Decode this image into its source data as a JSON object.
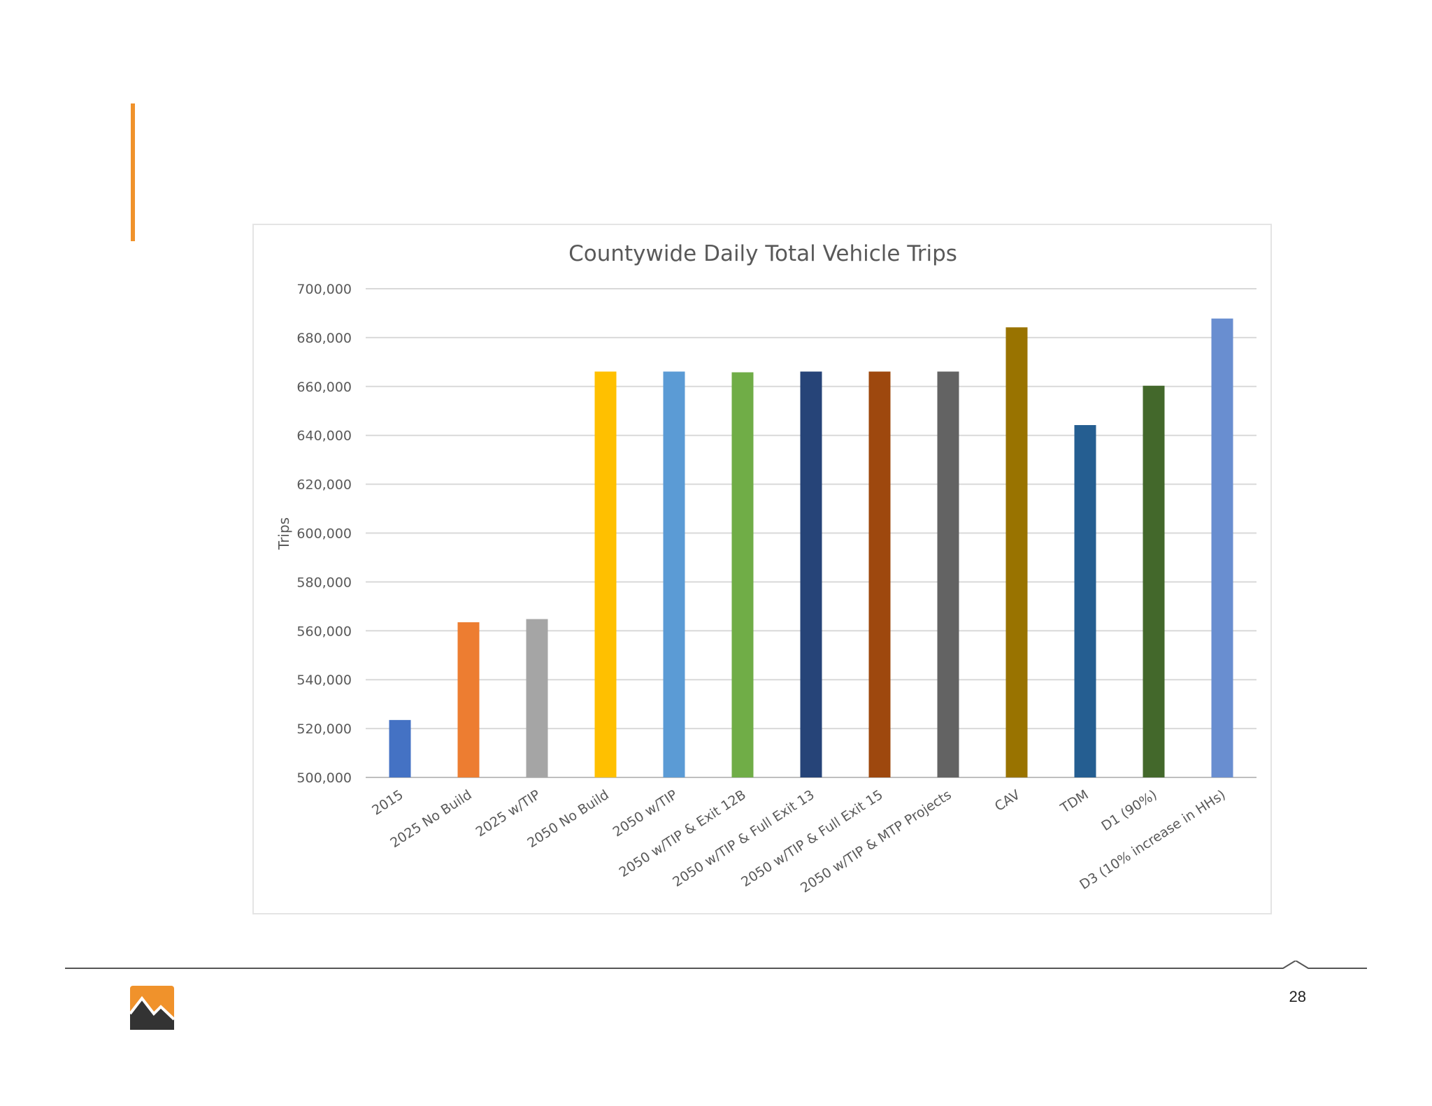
{
  "slide": {
    "page_number": "28",
    "accent_color": "#f0922b"
  },
  "chart_data": {
    "type": "bar",
    "title": "Countywide Daily Total Vehicle Trips",
    "xlabel": "",
    "ylabel": "Trips",
    "ylim": [
      500000,
      700000
    ],
    "yticks": [
      500000,
      520000,
      540000,
      560000,
      580000,
      600000,
      620000,
      640000,
      660000,
      680000,
      700000
    ],
    "ytick_labels": [
      "500,000",
      "520,000",
      "540,000",
      "560,000",
      "580,000",
      "600,000",
      "620,000",
      "640,000",
      "660,000",
      "680,000",
      "700,000"
    ],
    "grid": true,
    "legend": "none",
    "categories": [
      "2015",
      "2025 No Build",
      "2025 w/TIP",
      "2050 No Build",
      "2050 w/TIP",
      "2050 w/TIP & Exit 12B",
      "2050 w/TIP & Full Exit 13",
      "2050 w/TIP & Full Exit 15",
      "2050 w/TIP & MTP Projects",
      "CAV",
      "TDM",
      "D1 (90%)",
      "D3 (10% increase in HHs)"
    ],
    "values": [
      523500,
      563500,
      564800,
      666100,
      666100,
      665800,
      666100,
      666100,
      666100,
      684200,
      644200,
      660300,
      687800
    ],
    "colors": [
      "#4472c4",
      "#ed7d31",
      "#a5a5a5",
      "#ffc000",
      "#5b9bd5",
      "#70ad47",
      "#264478",
      "#9e480e",
      "#636363",
      "#997300",
      "#255e91",
      "#43682b",
      "#698ed0"
    ]
  }
}
